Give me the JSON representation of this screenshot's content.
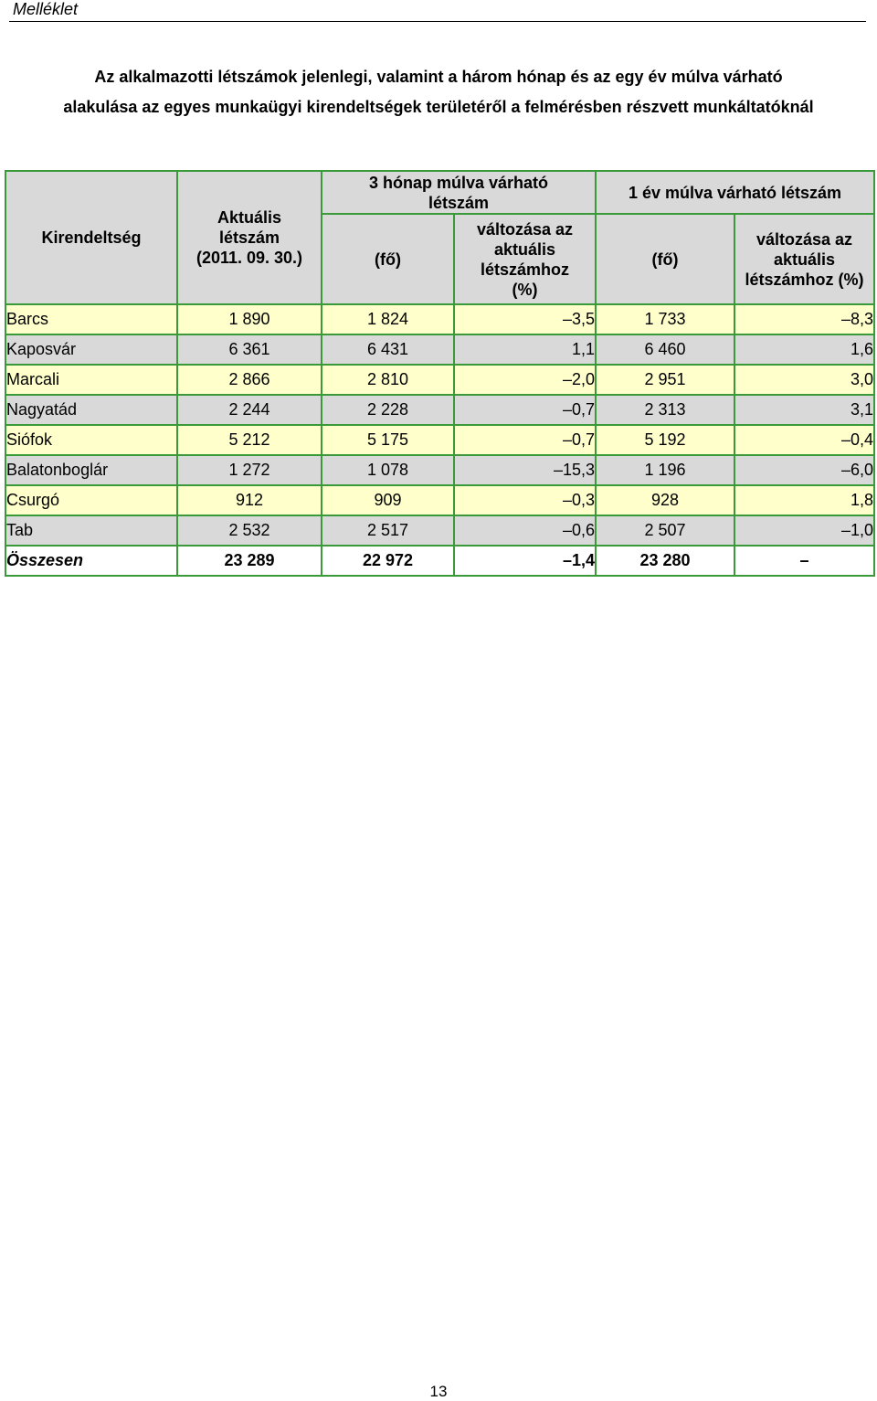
{
  "header": {
    "label": "Melléklet"
  },
  "title": {
    "line1": "Az alkalmazotti létszámok jelenlegi, valamint a három hónap és az egy év múlva várható",
    "line2": "alakulása az egyes munkaügyi kirendeltségek területéről a felmérésben részvett munkáltatóknál"
  },
  "table": {
    "headers": {
      "kirendeltseg": "Kirendeltség",
      "aktualis": "Aktuális létszám (2011. 09. 30.)",
      "three_months": "3 hónap múlva várható létszám",
      "one_year": "1 év múlva várható létszám",
      "fo_3m": "(fő)",
      "change_3m": "változása az aktuális létszámhoz (%)",
      "fo_1y": "(fő)",
      "change_1y": "változása az aktuális létszámhoz (%)"
    },
    "rows": [
      {
        "name": "Barcs",
        "current": "1 890",
        "m3": "1 824",
        "m3pct": "–3,5",
        "y1": "1 733",
        "y1pct": "–8,3"
      },
      {
        "name": "Kaposvár",
        "current": "6 361",
        "m3": "6 431",
        "m3pct": "1,1",
        "y1": "6 460",
        "y1pct": "1,6"
      },
      {
        "name": "Marcali",
        "current": "2 866",
        "m3": "2 810",
        "m3pct": "–2,0",
        "y1": "2 951",
        "y1pct": "3,0"
      },
      {
        "name": "Nagyatád",
        "current": "2 244",
        "m3": "2 228",
        "m3pct": "–0,7",
        "y1": "2 313",
        "y1pct": "3,1"
      },
      {
        "name": "Siófok",
        "current": "5 212",
        "m3": "5 175",
        "m3pct": "–0,7",
        "y1": "5 192",
        "y1pct": "–0,4"
      },
      {
        "name": "Balatonboglár",
        "current": "1 272",
        "m3": "1 078",
        "m3pct": "–15,3",
        "y1": "1 196",
        "y1pct": "–6,0"
      },
      {
        "name": "Csurgó",
        "current": "912",
        "m3": "909",
        "m3pct": "–0,3",
        "y1": "928",
        "y1pct": "1,8"
      },
      {
        "name": "Tab",
        "current": "2 532",
        "m3": "2 517",
        "m3pct": "–0,6",
        "y1": "2 507",
        "y1pct": "–1,0"
      }
    ],
    "total": {
      "name": "Összesen",
      "current": "23 289",
      "m3": "22 972",
      "m3pct": "–1,4",
      "y1": "23 280",
      "y1pct": "–"
    }
  },
  "page_number": "13",
  "colors": {
    "border_green": "#3a9a3a",
    "header_gray": "#d9d9d9",
    "row_yellow": "#ffffcc",
    "row_gray": "#d9d9d9",
    "row_white": "#ffffff"
  }
}
